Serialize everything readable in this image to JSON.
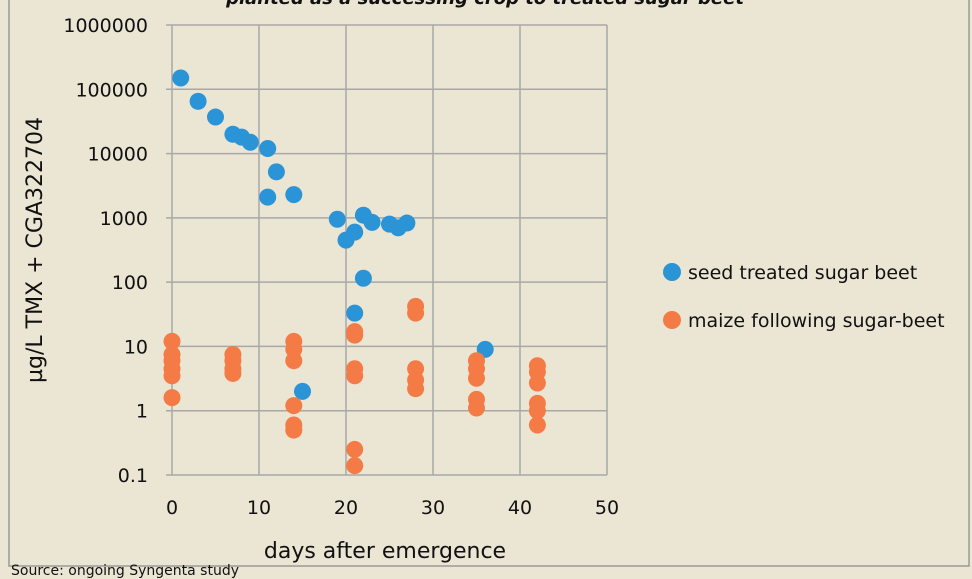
{
  "chart_data": {
    "type": "scatter",
    "title": "planted as a successing crop to treated sugar beet",
    "x_label": "days after emergence",
    "y_label": "µg/L TMX + CGA322704",
    "source": "Source: ongoing Syngenta study",
    "xlim": [
      0,
      50
    ],
    "xticks": [
      0,
      10,
      20,
      30,
      40,
      50
    ],
    "ylim": [
      0.1,
      1000000
    ],
    "yticks": [
      0.1,
      1,
      10,
      100,
      1000,
      10000,
      100000,
      1000000
    ],
    "yscale": "log",
    "grid": true,
    "legend": "right",
    "series": [
      {
        "name": "seed treated sugar beet",
        "color": "#2b94d6",
        "x": [
          1,
          3,
          5,
          7,
          8,
          9,
          11,
          11,
          12,
          14,
          15,
          19,
          20,
          21,
          22,
          23,
          25,
          26,
          27,
          21,
          22,
          36
        ],
        "values": [
          150000,
          65000,
          37000,
          20000,
          18000,
          15000,
          12000,
          2100,
          5200,
          2300,
          2,
          950,
          450,
          600,
          1100,
          850,
          800,
          700,
          830,
          33,
          115,
          9
        ]
      },
      {
        "name": "maize following sugar-beet",
        "color": "#f47b45",
        "x": [
          0,
          0,
          0,
          0,
          0,
          0,
          7,
          7,
          7,
          7,
          14,
          14,
          14,
          14,
          14,
          14,
          21,
          21,
          21,
          21,
          21,
          21,
          28,
          28,
          28,
          28,
          28,
          35,
          35,
          35,
          35,
          35,
          42,
          42,
          42,
          42,
          42,
          42
        ],
        "values": [
          12,
          7.5,
          6,
          4.5,
          3.5,
          1.6,
          7.5,
          6,
          4.5,
          3.8,
          12,
          9,
          6,
          1.2,
          0.6,
          0.5,
          17,
          15,
          4.5,
          3.5,
          0.25,
          0.14,
          42,
          33,
          4.5,
          3,
          2.2,
          6,
          4.5,
          3.2,
          1.5,
          1.1,
          5,
          4,
          2.7,
          1.3,
          1,
          0.6
        ]
      }
    ]
  }
}
